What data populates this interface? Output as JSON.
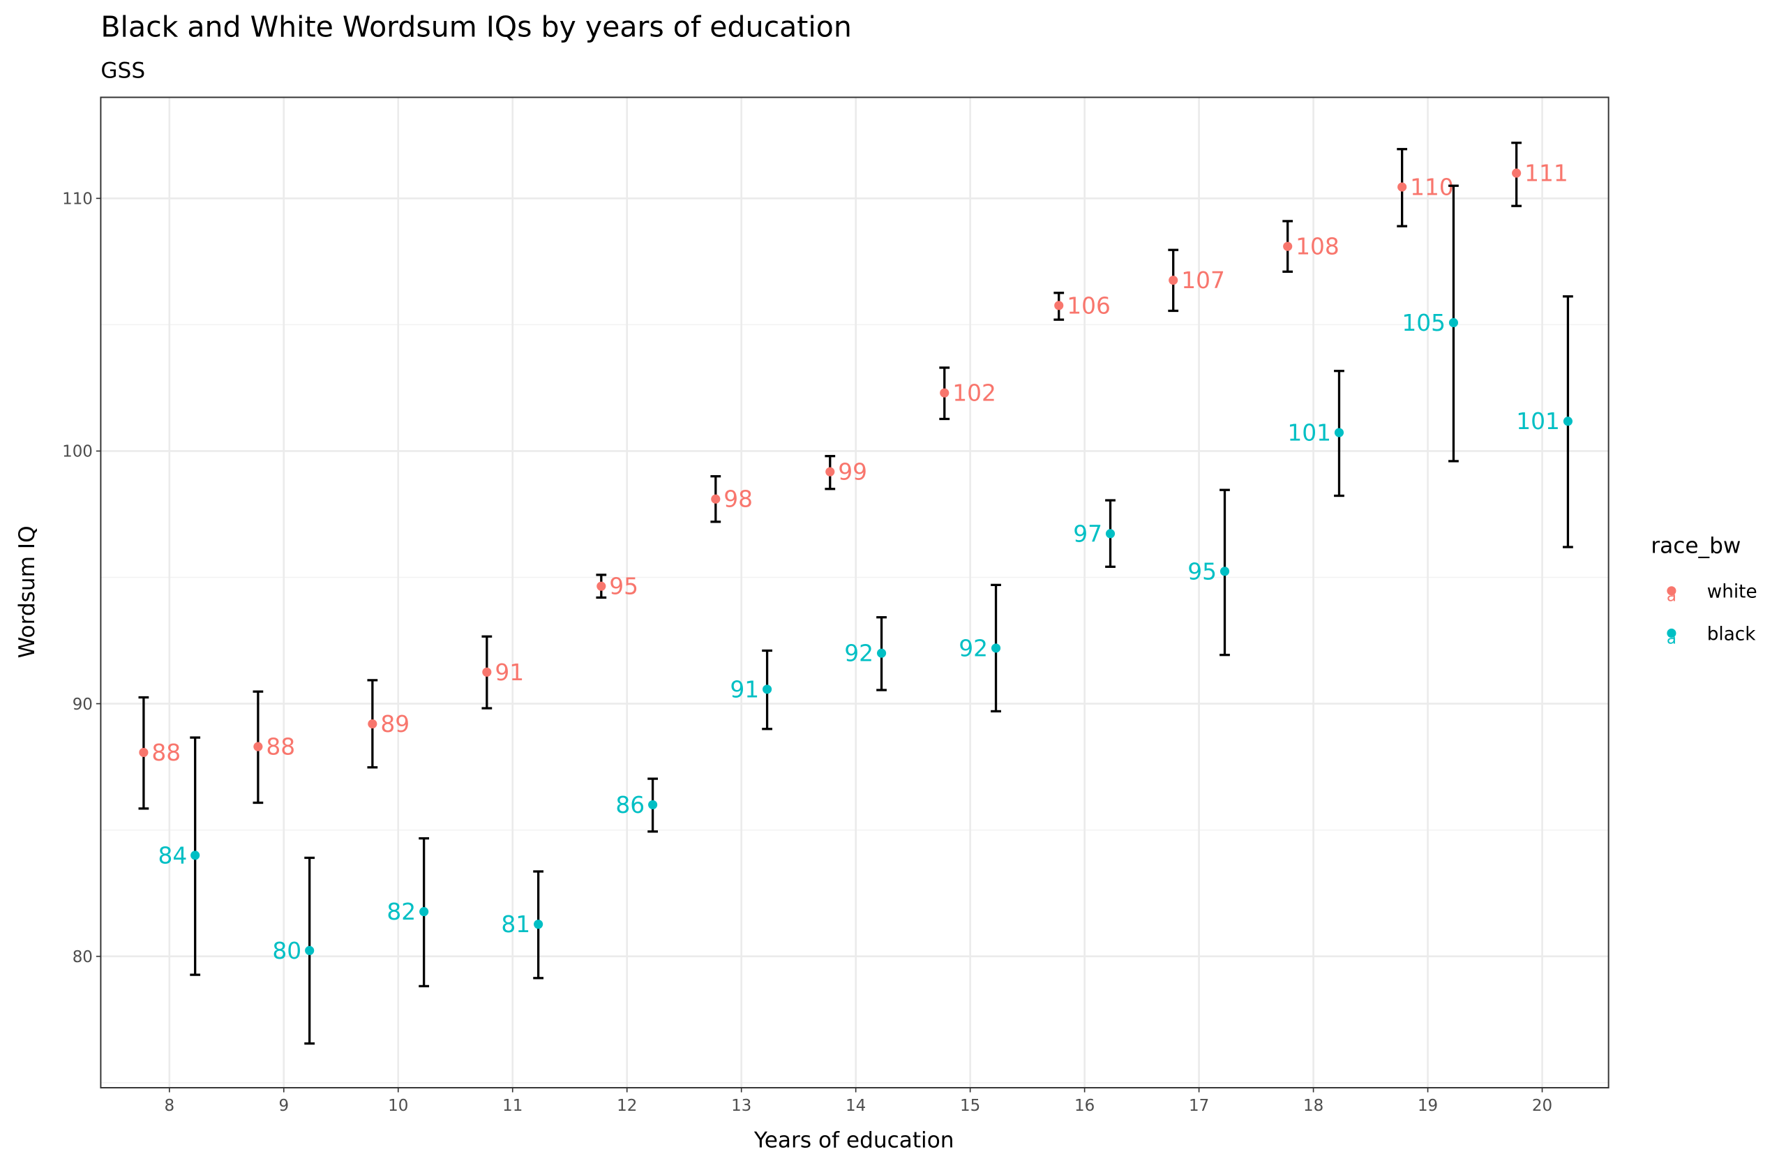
{
  "chart_data": {
    "type": "scatter",
    "title": "Black and White Wordsum IQs by years of education",
    "subtitle": "GSS",
    "xlabel": "Years of education",
    "ylabel": "Wordsum IQ",
    "xlim": [
      7.4,
      20.58
    ],
    "ylim": [
      74.8,
      114.0
    ],
    "x_ticks": [
      8,
      9,
      10,
      11,
      12,
      13,
      14,
      15,
      16,
      17,
      18,
      19,
      20
    ],
    "y_ticks": [
      80,
      90,
      100,
      110
    ],
    "grid": true,
    "legend": {
      "title": "race_bw",
      "placement": "right",
      "entries": [
        "white",
        "black"
      ]
    },
    "series": [
      {
        "name": "white",
        "color": "#F8766D",
        "dodge": -0.225,
        "x": [
          8,
          9,
          10,
          11,
          12,
          13,
          14,
          15,
          16,
          17,
          18,
          19,
          20
        ],
        "y": [
          88.07,
          88.3,
          89.2,
          91.25,
          94.65,
          98.1,
          99.18,
          102.3,
          105.76,
          106.76,
          108.1,
          110.45,
          111.0
        ],
        "ymin": [
          85.85,
          86.08,
          87.48,
          89.82,
          94.2,
          97.2,
          98.5,
          101.27,
          105.2,
          105.55,
          107.1,
          108.9,
          109.7
        ],
        "ymax": [
          90.25,
          90.48,
          90.93,
          92.66,
          95.1,
          99.0,
          99.8,
          103.3,
          106.26,
          107.96,
          109.1,
          111.95,
          112.2
        ],
        "labels": [
          "88",
          "88",
          "89",
          "91",
          "95",
          "98",
          "99",
          "102",
          "106",
          "107",
          "108",
          "110",
          "111"
        ]
      },
      {
        "name": "black",
        "color": "#00BFC4",
        "dodge": 0.225,
        "x": [
          8,
          9,
          10,
          11,
          12,
          13,
          14,
          15,
          16,
          17,
          18,
          19,
          20
        ],
        "y": [
          84.0,
          80.23,
          81.77,
          81.27,
          86.0,
          90.57,
          92.0,
          92.2,
          96.73,
          95.24,
          100.73,
          105.08,
          101.18
        ],
        "ymin": [
          79.27,
          76.55,
          78.82,
          79.14,
          84.94,
          89.0,
          90.54,
          89.7,
          95.42,
          91.93,
          98.23,
          99.6,
          96.2
        ],
        "ymax": [
          88.66,
          83.9,
          84.67,
          83.36,
          87.03,
          92.1,
          93.42,
          94.7,
          98.05,
          98.46,
          103.17,
          110.5,
          106.12
        ],
        "labels": [
          "84",
          "80",
          "82",
          "81",
          "86",
          "91",
          "92",
          "92",
          "97",
          "95",
          "101",
          "105",
          "101"
        ]
      }
    ]
  }
}
